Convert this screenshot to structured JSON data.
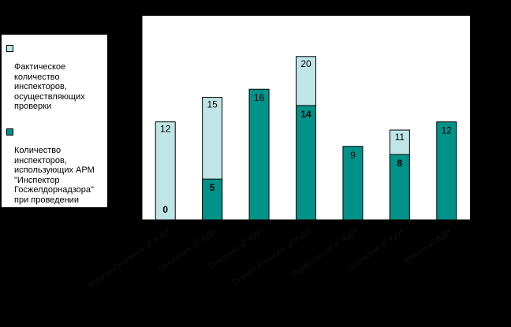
{
  "chart_data": {
    "type": "bar",
    "stacked_overlay": true,
    "title": "",
    "xlabel": "",
    "ylabel": "",
    "ylim": [
      0,
      25
    ],
    "ytick_labels": [
      "",
      "",
      "",
      "",
      "",
      ""
    ],
    "grid": false,
    "legend_position": "left",
    "categories": [
      "Москва-Смоленск. уГЖДН",
      "Октябрьск. уГЖДН",
      "Северное уГЖДН",
      "Северо-Кавказск. уГЖДН",
      "Приволжское уГЖДН",
      "Уральское уГЖДН",
      "Южное уГЖДН"
    ],
    "series": [
      {
        "name": "Фактическое количество инспекторов, осуществляющих проверки",
        "color": "#BFE5E6",
        "values": [
          12,
          15,
          null,
          20,
          null,
          11,
          null
        ],
        "labels": [
          "12",
          "15",
          "",
          "20",
          "",
          "11",
          ""
        ]
      },
      {
        "name": "Количество инспекторов, использующих АРМ \"Инспектор Госжелдорнадзора\" при проведении проверок",
        "color": "#009288",
        "values": [
          0,
          5,
          16,
          14,
          9,
          8,
          12
        ],
        "labels": [
          "0",
          "5",
          "16",
          "14",
          "9",
          "8",
          "12"
        ]
      }
    ]
  },
  "colors": {
    "background": "#000000",
    "plot_area": "#FFFFFF",
    "light_bar": "#BFE5E6",
    "dark_bar": "#009288"
  }
}
